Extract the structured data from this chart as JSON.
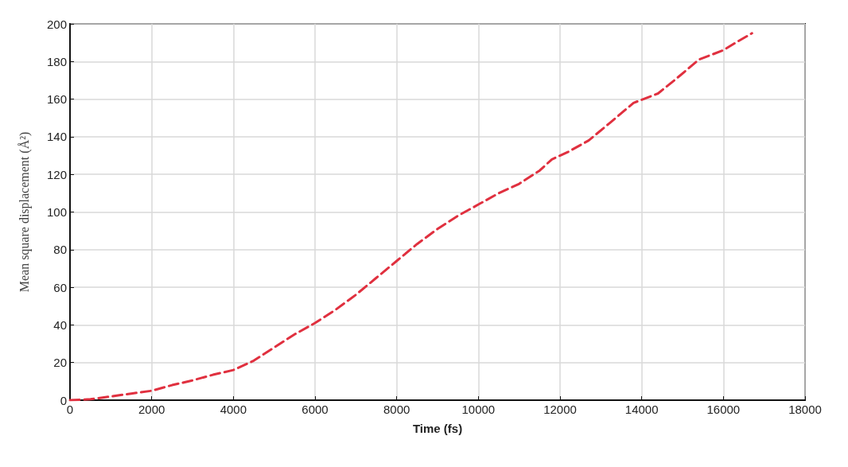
{
  "chart_data": {
    "type": "line",
    "xlabel": "Time (fs)",
    "ylabel": "Mean square displacement (Å²)",
    "xlim": [
      0,
      18000
    ],
    "xticks": [
      0,
      2000,
      4000,
      6000,
      8000,
      10000,
      12000,
      14000,
      16000,
      18000
    ],
    "ylim": [
      0,
      200
    ],
    "yticks": [
      0,
      20,
      40,
      60,
      80,
      100,
      120,
      140,
      160,
      180,
      200
    ],
    "grid": true,
    "line_style": "dashed",
    "marker": "none",
    "series": [
      {
        "color": "#e0303f",
        "x": [
          0,
          500,
          1000,
          1500,
          2000,
          2500,
          3000,
          3500,
          4000,
          4500,
          5000,
          5500,
          6000,
          6500,
          7000,
          7500,
          8000,
          8500,
          9000,
          9500,
          10000,
          10500,
          11000,
          11500,
          11800,
          12200,
          12700,
          13200,
          13800,
          14400,
          14800,
          15400,
          16000,
          16300,
          16700
        ],
        "values": [
          0,
          0.5,
          2,
          3.5,
          5,
          8,
          10.5,
          13.5,
          16,
          21,
          28,
          35,
          41,
          48,
          56,
          65,
          74,
          83,
          91,
          98,
          104,
          110,
          115,
          122,
          128,
          132,
          138,
          147,
          158,
          163,
          170,
          181,
          186,
          190,
          195
        ]
      }
    ]
  }
}
